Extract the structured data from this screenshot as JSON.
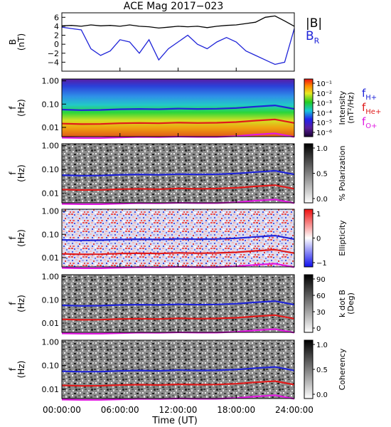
{
  "title": "ACE Mag 2017−023",
  "xaxis": {
    "label": "Time (UT)",
    "ticks": [
      "00:00:00",
      "06:00:00",
      "12:00:00",
      "18:00:00",
      "24:00:00"
    ],
    "range_hours": [
      0,
      24
    ]
  },
  "legend_b": [
    {
      "text": "|B|",
      "color": "#000000"
    },
    {
      "text": "B",
      "sub": "R",
      "color": "#1f24d8"
    }
  ],
  "legend_f": [
    {
      "text": "f",
      "sub": "H+",
      "color": "#1f24d8"
    },
    {
      "text": "f",
      "sub": "He+",
      "color": "#e01a1a"
    },
    {
      "text": "f",
      "sub": "O+",
      "color": "#e01ae0"
    }
  ],
  "panels": [
    {
      "name": "b-field",
      "ylabel": [
        "B",
        "(nT)"
      ],
      "yticks": [
        "6",
        "4",
        "2",
        "0",
        "−2",
        "−4"
      ]
    },
    {
      "name": "intensity",
      "ylabel": [
        "f",
        "(Hz)"
      ],
      "yticks": [
        "1.00",
        "0.10",
        "0.01"
      ],
      "colorbar": {
        "scale": "spectral",
        "labels": [
          "10⁻¹",
          "10⁻²",
          "10⁻³",
          "10⁻⁴",
          "10⁻⁵",
          "10⁻⁶"
        ],
        "title": [
          "Intensity",
          "(nT²/Hz)"
        ]
      }
    },
    {
      "name": "polarization",
      "ylabel": [
        "f",
        "(Hz)"
      ],
      "yticks": [
        "1.00",
        "0.10",
        "0.01"
      ],
      "colorbar": {
        "scale": "gray",
        "labels": [
          "1.0",
          "0.5",
          "0.0"
        ],
        "title": [
          "% Polarization"
        ]
      }
    },
    {
      "name": "ellipticity",
      "ylabel": [
        "f",
        "(Hz)"
      ],
      "yticks": [
        "1.00",
        "0.10",
        "0.01"
      ],
      "colorbar": {
        "scale": "bwr",
        "labels": [
          "1",
          "0",
          "−1"
        ],
        "title": [
          "Ellipticity"
        ]
      }
    },
    {
      "name": "k-dot-b",
      "ylabel": [
        "f",
        "(Hz)"
      ],
      "yticks": [
        "1.00",
        "0.10",
        "0.01"
      ],
      "colorbar": {
        "scale": "gray",
        "labels": [
          "90",
          "60",
          "30",
          "0"
        ],
        "title": [
          "k dot B",
          "(Deg)"
        ]
      }
    },
    {
      "name": "coherency",
      "ylabel": [
        "f",
        "(Hz)"
      ],
      "yticks": [
        "1.00",
        "0.10",
        "0.01"
      ],
      "colorbar": {
        "scale": "gray",
        "labels": [
          "1.0",
          "0.5",
          "0.0"
        ],
        "title": [
          "Coherency"
        ]
      }
    }
  ],
  "chart_data": [
    {
      "type": "line",
      "ylim": [
        -6,
        7
      ],
      "x": [
        0,
        1,
        2,
        3,
        4,
        5,
        6,
        7,
        8,
        9,
        10,
        11,
        12,
        13,
        14,
        15,
        16,
        17,
        18,
        19,
        20,
        21,
        22,
        23,
        24
      ],
      "series": [
        {
          "name": "|B|",
          "color": "#000000",
          "values": [
            4.1,
            4.2,
            4.0,
            4.3,
            4.1,
            4.2,
            4.0,
            4.3,
            4.0,
            3.9,
            3.6,
            3.8,
            4.0,
            3.9,
            4.0,
            3.7,
            4.0,
            4.2,
            4.3,
            4.6,
            4.9,
            6.0,
            6.3,
            5.2,
            4.0
          ]
        },
        {
          "name": "B_R",
          "color": "#1f24d8",
          "values": [
            3.8,
            3.5,
            3.2,
            -1.0,
            -2.5,
            -1.5,
            1.0,
            0.5,
            -2.0,
            1.0,
            -3.5,
            -1.0,
            0.5,
            2.0,
            0.0,
            -1.0,
            0.5,
            1.5,
            0.5,
            -1.5,
            -2.5,
            -3.5,
            -4.5,
            -4.0,
            3.5
          ]
        }
      ]
    },
    {
      "type": "line",
      "ylim": [
        0.004,
        1.2
      ],
      "yscale": "log",
      "x": [
        0,
        2,
        4,
        6,
        8,
        10,
        12,
        14,
        16,
        18,
        20,
        22,
        24
      ],
      "series": [
        {
          "name": "f_H+",
          "color": "#1f24d8",
          "values": [
            0.058,
            0.055,
            0.056,
            0.06,
            0.062,
            0.06,
            0.064,
            0.062,
            0.063,
            0.068,
            0.078,
            0.088,
            0.062
          ]
        },
        {
          "name": "f_He+",
          "color": "#e01a1a",
          "values": [
            0.0145,
            0.0138,
            0.014,
            0.015,
            0.0155,
            0.015,
            0.016,
            0.0155,
            0.0158,
            0.017,
            0.0195,
            0.022,
            0.0155
          ]
        },
        {
          "name": "f_O+",
          "color": "#e01ae0",
          "values": [
            0.0036,
            0.0035,
            0.0035,
            0.0037,
            0.0039,
            0.0038,
            0.004,
            0.0039,
            0.0039,
            0.0042,
            0.0049,
            0.0055,
            0.0039
          ]
        }
      ]
    }
  ]
}
